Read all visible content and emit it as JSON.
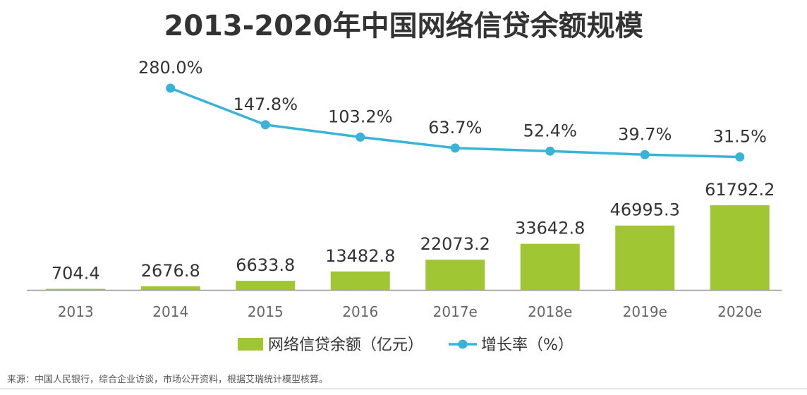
{
  "title": "2013-2020年中国网络信贷余额规模",
  "source": "来源：中国人民银行，综合企业访谈，市场公开资料，根据艾瑞统计模型核算。",
  "colors": {
    "bar": "#a0c634",
    "line": "#39b4d8",
    "text": "#333333",
    "axis": "#666666"
  },
  "chart_data": {
    "type": "bar+line",
    "categories": [
      "2013",
      "2014",
      "2015",
      "2016",
      "2017e",
      "2018e",
      "2019e",
      "2020e"
    ],
    "series": [
      {
        "name": "网络信贷余额（亿元）",
        "type": "bar",
        "values": [
          704.4,
          2676.8,
          6633.8,
          13482.8,
          22073.2,
          33642.8,
          46995.3,
          61792.2
        ],
        "labels": [
          "704.4",
          "2676.8",
          "6633.8",
          "13482.8",
          "22073.2",
          "33642.8",
          "46995.3",
          "61792.2"
        ]
      },
      {
        "name": "增长率（%）",
        "type": "line",
        "values": [
          null,
          280.0,
          147.8,
          103.2,
          63.7,
          52.4,
          39.7,
          31.5
        ],
        "labels": [
          "",
          "280.0%",
          "147.8%",
          "103.2%",
          "63.7%",
          "52.4%",
          "39.7%",
          "31.5%"
        ]
      }
    ],
    "legend": [
      "网络信贷余额（亿元）",
      "增长率（%）"
    ],
    "legend_position": "bottom-center",
    "grid": false
  }
}
